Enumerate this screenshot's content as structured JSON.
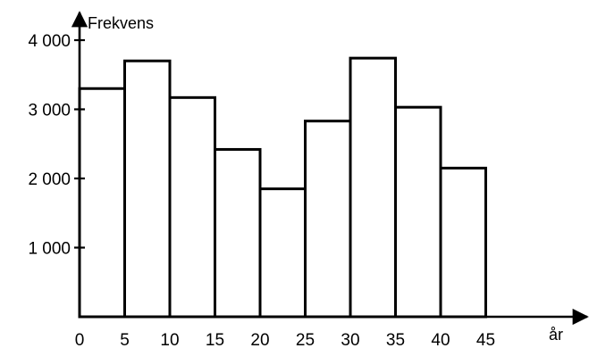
{
  "chart_data": {
    "type": "bar",
    "title": "",
    "ylabel": "Frekvens",
    "xlabel": "år",
    "bins": [
      {
        "from": 0,
        "to": 5,
        "value": 3300
      },
      {
        "from": 5,
        "to": 10,
        "value": 3700
      },
      {
        "from": 10,
        "to": 15,
        "value": 3170
      },
      {
        "from": 15,
        "to": 20,
        "value": 2420
      },
      {
        "from": 20,
        "to": 25,
        "value": 1850
      },
      {
        "from": 25,
        "to": 30,
        "value": 2830
      },
      {
        "from": 30,
        "to": 35,
        "value": 3740
      },
      {
        "from": 35,
        "to": 40,
        "value": 3030
      },
      {
        "from": 40,
        "to": 45,
        "value": 2150
      }
    ],
    "x_ticks": [
      "0",
      "5",
      "10",
      "15",
      "20",
      "25",
      "30",
      "35",
      "40",
      "45"
    ],
    "y_ticks": [
      {
        "value": 1000,
        "label": "1 000"
      },
      {
        "value": 2000,
        "label": "2 000"
      },
      {
        "value": 3000,
        "label": "3 000"
      },
      {
        "value": 4000,
        "label": "4 000"
      }
    ],
    "xlim": [
      0,
      45
    ],
    "ylim": [
      0,
      4000
    ],
    "grid": false,
    "legend": "none"
  }
}
